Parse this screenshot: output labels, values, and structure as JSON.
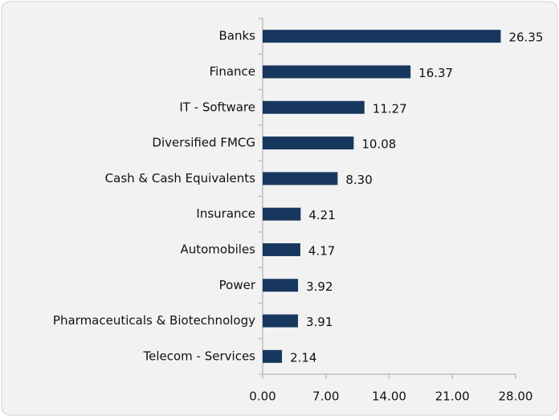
{
  "chart_data": {
    "type": "bar",
    "orientation": "horizontal",
    "categories": [
      "Banks",
      "Finance",
      "IT - Software",
      "Diversified FMCG",
      "Cash & Cash Equivalents",
      "Insurance",
      "Automobiles",
      "Power",
      "Pharmaceuticals & Biotechnology",
      "Telecom - Services"
    ],
    "values": [
      26.35,
      16.37,
      11.27,
      10.08,
      8.3,
      4.21,
      4.17,
      3.92,
      3.91,
      2.14
    ],
    "value_labels": [
      "26.35",
      "16.37",
      "11.27",
      "10.08",
      "8.30",
      "4.21",
      "4.17",
      "3.92",
      "3.91",
      "2.14"
    ],
    "color": "#17375e",
    "xlim": [
      0,
      28
    ],
    "xticks": [
      {
        "value": 0,
        "label": "0.00"
      },
      {
        "value": 7,
        "label": "7.00"
      },
      {
        "value": 14,
        "label": "14.00"
      },
      {
        "value": 21,
        "label": "21.00"
      },
      {
        "value": 28,
        "label": "28.00"
      }
    ]
  }
}
